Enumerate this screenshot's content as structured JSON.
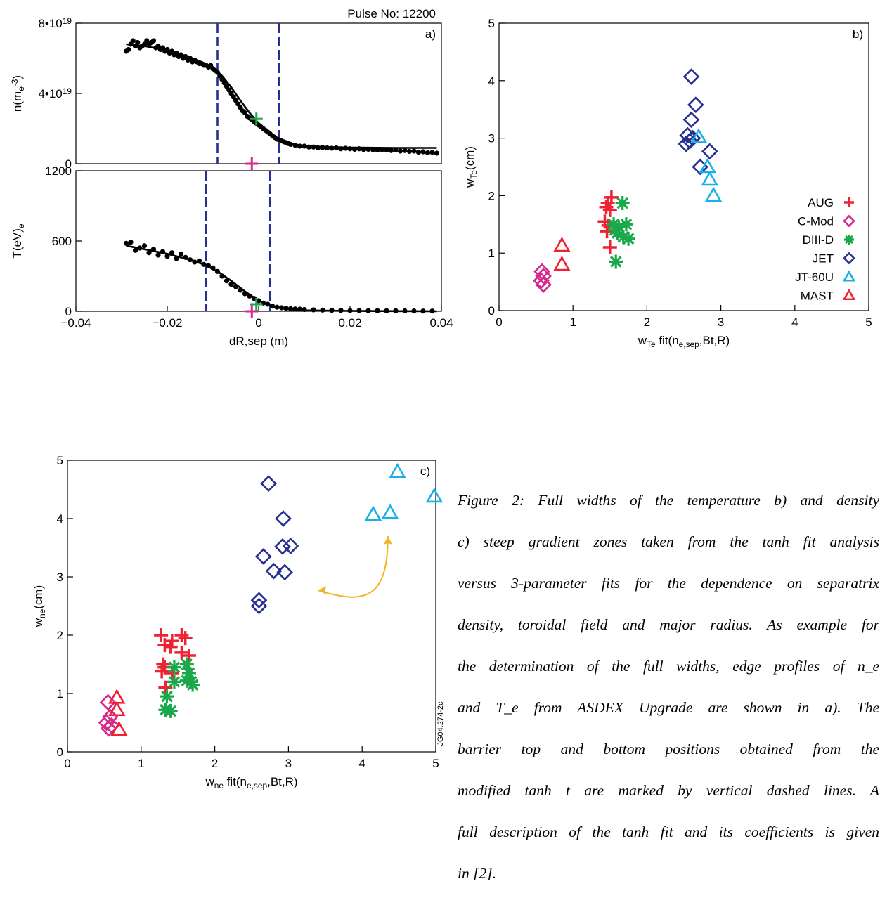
{
  "chart_data": [
    {
      "id": "a-density",
      "type": "scatter",
      "panel_label": "a)",
      "annotation": "Pulse No: 12200",
      "ylabel": "n(m_e^-3)",
      "ylim": [
        0,
        8e+19
      ],
      "xlim": [
        -0.04,
        0.04
      ],
      "yticks": [
        "0",
        "4•10^19",
        "8•10^19"
      ],
      "ytick_values": [
        0,
        4e+19,
        8e+19
      ],
      "dashed_lines_x": [
        -0.009,
        0.0045
      ],
      "markers": [
        {
          "kind": "plus",
          "color": "#1aa84a",
          "x": -0.0005,
          "y": 2.55e+19
        },
        {
          "kind": "plus",
          "color": "#d6288f",
          "x": -0.0015,
          "y": 0
        }
      ],
      "series": [
        {
          "kind": "dots",
          "x": [
            -0.029,
            -0.0285,
            -0.028,
            -0.0275,
            -0.027,
            -0.0265,
            -0.026,
            -0.0255,
            -0.025,
            -0.0245,
            -0.024,
            -0.0235,
            -0.023,
            -0.0225,
            -0.022,
            -0.0215,
            -0.021,
            -0.0205,
            -0.02,
            -0.0195,
            -0.019,
            -0.0185,
            -0.018,
            -0.0175,
            -0.017,
            -0.0165,
            -0.016,
            -0.0155,
            -0.015,
            -0.0145,
            -0.014,
            -0.0135,
            -0.013,
            -0.0125,
            -0.012,
            -0.0115,
            -0.011,
            -0.0105,
            -0.01,
            -0.0095,
            -0.009,
            -0.0085,
            -0.008,
            -0.0075,
            -0.007,
            -0.0065,
            -0.006,
            -0.0055,
            -0.005,
            -0.0045,
            -0.004,
            -0.0035,
            -0.003,
            -0.0025,
            -0.002,
            -0.0015,
            -0.001,
            -0.0005,
            0,
            0.0005,
            0.001,
            0.0015,
            0.002,
            0.0025,
            0.003,
            0.0035,
            0.004,
            0.0045,
            0.005,
            0.0055,
            0.006,
            0.0065,
            0.007,
            0.008,
            0.009,
            0.01,
            0.011,
            0.012,
            0.013,
            0.014,
            0.015,
            0.016,
            0.017,
            0.018,
            0.019,
            0.02,
            0.021,
            0.022,
            0.023,
            0.024,
            0.025,
            0.026,
            0.027,
            0.028,
            0.029,
            0.03,
            0.031,
            0.032,
            0.033,
            0.034,
            0.035,
            0.036,
            0.037,
            0.038,
            0.039
          ],
          "y": [
            6.4e+19,
            6.5e+19,
            6.8e+19,
            7e+19,
            6.7e+19,
            6.9e+19,
            6.6e+19,
            6.7e+19,
            6.8e+19,
            7e+19,
            6.8e+19,
            6.9e+19,
            7e+19,
            6.6e+19,
            6.7e+19,
            6.5e+19,
            6.6e+19,
            6.4e+19,
            6.5e+19,
            6.3e+19,
            6.4e+19,
            6.2e+19,
            6.3e+19,
            6.1e+19,
            6.2e+19,
            6e+19,
            6.1e+19,
            5.9e+19,
            6e+19,
            5.8e+19,
            5.9e+19,
            5.8e+19,
            5.7e+19,
            5.7e+19,
            5.6e+19,
            5.6e+19,
            5.5e+19,
            5.6e+19,
            5.4e+19,
            5.3e+19,
            5.2e+19,
            5e+19,
            4.8e+19,
            4.6e+19,
            4.4e+19,
            4.2e+19,
            4e+19,
            3.8e+19,
            3.6e+19,
            3.4e+19,
            3.2e+19,
            3e+19,
            2.9e+19,
            2.7e+19,
            2.6e+19,
            2.5e+19,
            2.4e+19,
            2.3e+19,
            2.2e+19,
            2.1e+19,
            2e+19,
            1.9e+19,
            1.8e+19,
            1.7e+19,
            1.6e+19,
            1.5e+19,
            1.4e+19,
            1.35e+19,
            1.3e+19,
            1.25e+19,
            1.2e+19,
            1.15e+19,
            1.1e+19,
            1.05e+19,
            1e+19,
            1e+19,
            9.5e+18,
            9.5e+18,
            9e+18,
            9.2e+18,
            9e+18,
            8.8e+18,
            9e+18,
            8.5e+18,
            8.8e+18,
            8.5e+18,
            8.2e+18,
            8.5e+18,
            8e+18,
            8.2e+18,
            8e+18,
            7.8e+18,
            8e+18,
            7.8e+18,
            7.5e+18,
            7.8e+18,
            7.2e+18,
            7.5e+18,
            7e+18,
            7.2e+18,
            6.5e+18,
            6.8e+18,
            6.2e+18,
            6.5e+18,
            6e+18
          ]
        },
        {
          "kind": "fit",
          "x": [
            -0.029,
            -0.025,
            -0.02,
            -0.016,
            -0.013,
            -0.01,
            -0.008,
            -0.006,
            -0.004,
            -0.002,
            0,
            0.002,
            0.004,
            0.006,
            0.008,
            0.01,
            0.015,
            0.02,
            0.03,
            0.039
          ],
          "y": [
            6.8e+19,
            6.7e+19,
            6.45e+19,
            6.15e+19,
            5.85e+19,
            5.5e+19,
            5e+19,
            4.35e+19,
            3.6e+19,
            2.9e+19,
            2.3e+19,
            1.8e+19,
            1.45e+19,
            1.22e+19,
            1.1e+19,
            1.02e+19,
            9.5e+18,
            9.2e+18,
            9e+18,
            9e+18
          ]
        }
      ]
    },
    {
      "id": "a-temperature",
      "type": "scatter",
      "ylabel": "T(eV)_e",
      "xlabel": "dR,sep (m)",
      "ylim": [
        0,
        1200
      ],
      "xlim": [
        -0.04,
        0.04
      ],
      "yticks": [
        "0",
        "600",
        "1200"
      ],
      "ytick_values": [
        0,
        600,
        1200
      ],
      "xticks": [
        "−0.04",
        "−0.02",
        "0",
        "0.02",
        "0.04"
      ],
      "xtick_values": [
        -0.04,
        -0.02,
        0,
        0.02,
        0.04
      ],
      "dashed_lines_x": [
        -0.0115,
        0.0025
      ],
      "markers": [
        {
          "kind": "plus",
          "color": "#1aa84a",
          "x": -0.0005,
          "y": 60
        },
        {
          "kind": "plus",
          "color": "#d6288f",
          "x": -0.0015,
          "y": 0
        }
      ],
      "series": [
        {
          "kind": "dots",
          "x": [
            -0.029,
            -0.028,
            -0.027,
            -0.026,
            -0.025,
            -0.024,
            -0.023,
            -0.022,
            -0.021,
            -0.02,
            -0.019,
            -0.018,
            -0.017,
            -0.016,
            -0.015,
            -0.014,
            -0.013,
            -0.012,
            -0.011,
            -0.01,
            -0.009,
            -0.008,
            -0.007,
            -0.006,
            -0.005,
            -0.004,
            -0.003,
            -0.002,
            -0.001,
            0,
            0.001,
            0.002,
            0.003,
            0.004,
            0.005,
            0.006,
            0.007,
            0.008,
            0.009,
            0.01,
            0.012,
            0.014,
            0.016,
            0.018,
            0.02,
            0.022,
            0.024,
            0.026,
            0.028,
            0.03,
            0.032,
            0.034,
            0.036,
            0.038
          ],
          "y": [
            580,
            590,
            520,
            540,
            560,
            500,
            530,
            480,
            510,
            470,
            500,
            450,
            490,
            460,
            440,
            420,
            430,
            400,
            390,
            370,
            340,
            300,
            260,
            230,
            210,
            180,
            150,
            130,
            110,
            90,
            70,
            60,
            45,
            35,
            30,
            25,
            22,
            20,
            18,
            15,
            12,
            10,
            8,
            8,
            6,
            6,
            5,
            5,
            4,
            4,
            3,
            3,
            2,
            2
          ]
        },
        {
          "kind": "fit",
          "x": [
            -0.029,
            -0.025,
            -0.02,
            -0.016,
            -0.012,
            -0.009,
            -0.006,
            -0.003,
            0,
            0.003,
            0.006,
            0.01,
            0.02,
            0.03,
            0.039
          ],
          "y": [
            560,
            530,
            490,
            450,
            400,
            340,
            260,
            170,
            90,
            40,
            18,
            8,
            3,
            1,
            0
          ]
        }
      ]
    },
    {
      "id": "b",
      "type": "scatter",
      "panel_label": "b)",
      "xlabel": "w_Te fit(n_e,sep,Bt,R)",
      "ylabel": "w_Te(cm)",
      "xlim": [
        0,
        5
      ],
      "ylim": [
        0,
        5
      ],
      "xticks": [
        "0",
        "1",
        "2",
        "3",
        "4",
        "5"
      ],
      "yticks": [
        "0",
        "1",
        "2",
        "3",
        "4",
        "5"
      ],
      "legend_position": "bottom-right",
      "series": [
        {
          "name": "AUG",
          "marker": "plus",
          "color": "#ee2233",
          "points": [
            [
              1.47,
              1.87
            ],
            [
              1.52,
              1.97
            ],
            [
              1.45,
              1.8
            ],
            [
              1.5,
              1.75
            ],
            [
              1.43,
              1.55
            ],
            [
              1.48,
              1.48
            ],
            [
              1.55,
              1.45
            ],
            [
              1.5,
              1.1
            ],
            [
              1.46,
              1.38
            ]
          ]
        },
        {
          "name": "C-Mod",
          "marker": "diamond",
          "color": "#d6288f",
          "points": [
            [
              0.58,
              0.68
            ],
            [
              0.6,
              0.6
            ],
            [
              0.57,
              0.52
            ],
            [
              0.6,
              0.45
            ]
          ]
        },
        {
          "name": "DIII-D",
          "marker": "asterisk",
          "color": "#1aa84a",
          "points": [
            [
              1.67,
              1.87
            ],
            [
              1.55,
              1.5
            ],
            [
              1.62,
              1.45
            ],
            [
              1.72,
              1.5
            ],
            [
              1.6,
              1.35
            ],
            [
              1.68,
              1.28
            ],
            [
              1.75,
              1.25
            ],
            [
              1.57,
              1.4
            ],
            [
              1.58,
              0.85
            ]
          ]
        },
        {
          "name": "JET",
          "marker": "diamond",
          "color": "#27308f",
          "points": [
            [
              2.6,
              4.07
            ],
            [
              2.66,
              3.58
            ],
            [
              2.6,
              3.32
            ],
            [
              2.55,
              3.05
            ],
            [
              2.62,
              3.0
            ],
            [
              2.53,
              2.9
            ],
            [
              2.58,
              2.95
            ],
            [
              2.85,
              2.77
            ],
            [
              2.72,
              2.5
            ]
          ]
        },
        {
          "name": "JT-60U",
          "marker": "triangle",
          "color": "#19b0e6",
          "points": [
            [
              2.7,
              3.02
            ],
            [
              2.82,
              2.5
            ],
            [
              2.85,
              2.28
            ],
            [
              2.9,
              2.0
            ]
          ]
        },
        {
          "name": "MAST",
          "marker": "triangle",
          "color": "#ee2233",
          "points": [
            [
              0.85,
              1.13
            ],
            [
              0.85,
              0.8
            ]
          ]
        }
      ]
    },
    {
      "id": "c",
      "type": "scatter",
      "panel_label": "c)",
      "xlabel": "w_ne fit(n_e,sep,Bt,R)",
      "ylabel": "w_ne(cm)",
      "xlim": [
        0,
        5
      ],
      "ylim": [
        0,
        5
      ],
      "xticks": [
        "0",
        "1",
        "2",
        "3",
        "4",
        "5"
      ],
      "yticks": [
        "0",
        "1",
        "2",
        "3",
        "4",
        "5"
      ],
      "side_label": "JG04.274-2c",
      "arrow": {
        "color": "#f5b324",
        "from": [
          4.35,
          3.7
        ],
        "to": [
          3.4,
          2.77
        ]
      },
      "series": [
        {
          "name": "AUG",
          "marker": "plus",
          "color": "#ee2233",
          "points": [
            [
              1.27,
              2.0
            ],
            [
              1.42,
              1.9
            ],
            [
              1.55,
              2.0
            ],
            [
              1.6,
              1.95
            ],
            [
              1.32,
              1.83
            ],
            [
              1.4,
              1.8
            ],
            [
              1.55,
              1.7
            ],
            [
              1.65,
              1.65
            ],
            [
              1.3,
              1.5
            ],
            [
              1.32,
              1.45
            ],
            [
              1.42,
              1.35
            ],
            [
              1.28,
              1.38
            ],
            [
              1.33,
              1.1
            ]
          ]
        },
        {
          "name": "C-Mod",
          "marker": "diamond",
          "color": "#d6288f",
          "points": [
            [
              0.55,
              0.85
            ],
            [
              0.58,
              0.6
            ],
            [
              0.53,
              0.5
            ],
            [
              0.56,
              0.4
            ],
            [
              0.6,
              0.45
            ]
          ]
        },
        {
          "name": "DIII-D",
          "marker": "asterisk",
          "color": "#1aa84a",
          "points": [
            [
              1.45,
              1.45
            ],
            [
              1.62,
              1.5
            ],
            [
              1.65,
              1.35
            ],
            [
              1.68,
              1.2
            ],
            [
              1.62,
              1.22
            ],
            [
              1.7,
              1.15
            ],
            [
              1.45,
              1.2
            ],
            [
              1.35,
              0.95
            ],
            [
              1.33,
              0.72
            ],
            [
              1.4,
              0.7
            ]
          ]
        },
        {
          "name": "JET",
          "marker": "diamond",
          "color": "#27308f",
          "points": [
            [
              2.73,
              4.6
            ],
            [
              2.93,
              4.0
            ],
            [
              2.92,
              3.52
            ],
            [
              3.03,
              3.53
            ],
            [
              2.66,
              3.35
            ],
            [
              2.8,
              3.1
            ],
            [
              2.95,
              3.08
            ],
            [
              2.6,
              2.6
            ],
            [
              2.6,
              2.5
            ]
          ]
        },
        {
          "name": "JT-60U",
          "marker": "triangle",
          "color": "#19b0e6",
          "points": [
            [
              4.48,
              4.8
            ],
            [
              4.98,
              4.38
            ],
            [
              4.15,
              4.07
            ],
            [
              4.38,
              4.1
            ]
          ]
        },
        {
          "name": "MAST",
          "marker": "triangle",
          "color": "#ee2233",
          "points": [
            [
              0.67,
              0.93
            ],
            [
              0.67,
              0.72
            ],
            [
              0.7,
              0.38
            ]
          ]
        }
      ]
    }
  ],
  "caption": {
    "lines": [
      "Figure 2: Full widths of the temperature b) and density",
      "c) steep gradient zones taken from the tanh  fit analysis",
      "versus 3-parameter fits for the dependence on separatrix",
      "density, toroidal field and major radius. As example for",
      "the determination of the full widths, edge profiles of n_e",
      "and T_e from ASDEX Upgrade are shown in a). The",
      "barrier top and bottom positions obtained from the",
      "modified tanh  t are marked by vertical dashed lines. A",
      "full description of the tanh fit and its coefficients is given",
      "in [2]."
    ]
  }
}
